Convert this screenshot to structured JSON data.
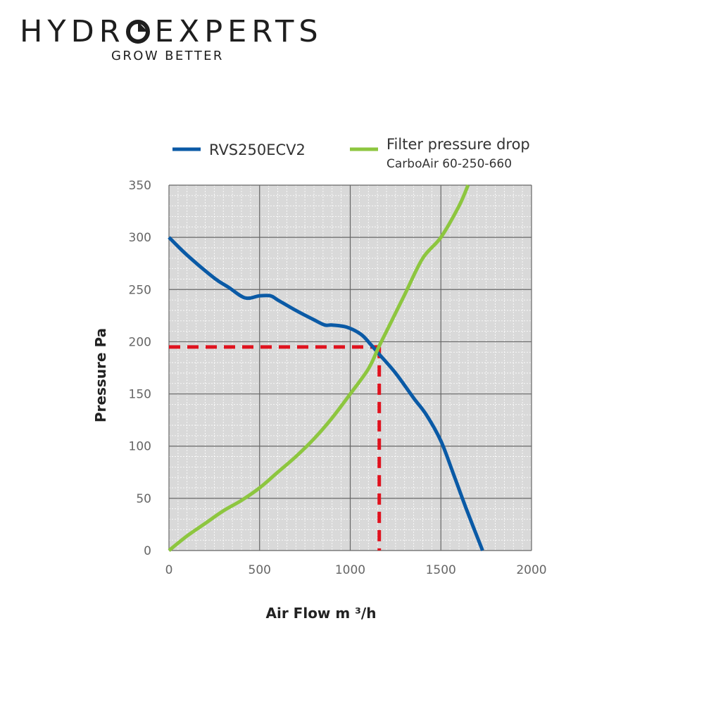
{
  "logo": {
    "word_part1": "HYDR",
    "word_part2": "EXPERTS",
    "tagline": "GROW BETTER"
  },
  "chart_data": {
    "type": "line",
    "xlabel": "Air Flow m ³/h",
    "ylabel": "Pressure Pa",
    "xlim": [
      0,
      2000
    ],
    "ylim": [
      0,
      350
    ],
    "x_ticks": [
      "0",
      "500",
      "1000",
      "1500",
      "2000"
    ],
    "y_ticks": [
      "0",
      "50",
      "100",
      "150",
      "200",
      "250",
      "300",
      "350"
    ],
    "grid": true,
    "legend_position": "top",
    "series": [
      {
        "name": "RVS250ECV2",
        "color": "#0a5aa6",
        "x": [
          0,
          100,
          250,
          330,
          420,
          500,
          560,
          600,
          700,
          800,
          860,
          900,
          980,
          1060,
          1110,
          1160,
          1250,
          1350,
          1420,
          1500,
          1570,
          1640,
          1730
        ],
        "y": [
          300,
          283,
          261,
          252,
          242,
          244,
          244,
          240,
          230,
          221,
          216,
          216,
          214,
          207,
          198,
          188,
          170,
          146,
          130,
          105,
          73,
          40,
          0
        ]
      },
      {
        "name": "Filter pressure drop",
        "name2": "CarboAir 60-250-660",
        "color": "#8dc63f",
        "x": [
          0,
          100,
          200,
          300,
          400,
          500,
          600,
          700,
          800,
          900,
          1000,
          1100,
          1160,
          1200,
          1300,
          1400,
          1500,
          1600,
          1650
        ],
        "y": [
          0,
          14,
          26,
          38,
          48,
          60,
          75,
          90,
          107,
          127,
          150,
          174,
          196,
          210,
          245,
          280,
          300,
          330,
          350
        ]
      }
    ],
    "operating_point": {
      "x": 1160,
      "y": 195,
      "color": "#e0121e"
    }
  }
}
